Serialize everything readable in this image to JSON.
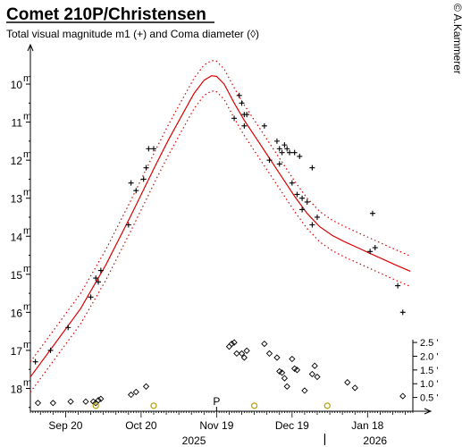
{
  "chart_data": {
    "type": "scatter",
    "title": "Comet 210P/Christensen",
    "subtitle": "Total visual magnitude m1 (+) and Coma diameter (◊)",
    "credit": "© A.Kammerer",
    "magnitude_axis": {
      "ylim": [
        9.2,
        18.6
      ],
      "ticks": [
        10,
        11,
        12,
        13,
        14,
        15,
        16,
        17,
        18
      ],
      "tick_suffix": "m",
      "inverted": true
    },
    "coma_axis": {
      "ylim": [
        0,
        2.6
      ],
      "ticks": [
        0.5,
        1.0,
        1.5,
        2.0,
        2.5
      ],
      "tick_labels": [
        "0.5 '",
        "1.0 '",
        "1.5 '",
        "2.0 '",
        "2.5 '"
      ]
    },
    "x_axis": {
      "unit": "days after 2025-09-01",
      "xlim": [
        5,
        157
      ],
      "ticks": [
        {
          "day": 19,
          "label": "Sep 20"
        },
        {
          "day": 49,
          "label": "Oct 20"
        },
        {
          "day": 79,
          "label": "Nov 19"
        },
        {
          "day": 109,
          "label": "Dec 19"
        },
        {
          "day": 139,
          "label": "Jan 18"
        }
      ],
      "years": [
        {
          "label": "2025",
          "day": 70
        },
        {
          "label": "2026",
          "day": 142
        }
      ],
      "year_boundary_day": 122
    },
    "perihelion": {
      "label": "P",
      "day": 79
    },
    "magnitude_observations": [
      [
        7,
        17.3
      ],
      [
        13,
        17.0
      ],
      [
        20,
        16.4
      ],
      [
        29,
        15.6
      ],
      [
        31,
        15.1
      ],
      [
        32,
        15.2
      ],
      [
        33,
        14.9
      ],
      [
        44,
        13.7
      ],
      [
        45,
        12.6
      ],
      [
        47,
        12.8
      ],
      [
        50,
        12.5
      ],
      [
        51,
        12.2
      ],
      [
        52,
        11.7
      ],
      [
        54,
        11.7
      ],
      [
        86,
        10.9
      ],
      [
        88,
        10.3
      ],
      [
        89,
        10.5
      ],
      [
        90,
        10.8
      ],
      [
        90,
        11.1
      ],
      [
        91,
        10.8
      ],
      [
        98,
        11.1
      ],
      [
        100,
        12.0
      ],
      [
        103,
        11.5
      ],
      [
        104,
        11.7
      ],
      [
        104,
        12.1
      ],
      [
        105,
        11.8
      ],
      [
        106,
        11.6
      ],
      [
        107,
        11.7
      ],
      [
        108,
        11.8
      ],
      [
        109,
        12.6
      ],
      [
        110,
        11.8
      ],
      [
        111,
        12.9
      ],
      [
        112,
        11.9
      ],
      [
        113,
        13.0
      ],
      [
        113,
        13.3
      ],
      [
        115,
        13.1
      ],
      [
        117,
        12.2
      ],
      [
        117,
        13.7
      ],
      [
        119,
        13.5
      ],
      [
        140,
        14.4
      ],
      [
        141,
        13.4
      ],
      [
        142,
        14.3
      ],
      [
        151,
        15.3
      ],
      [
        153,
        16.0
      ]
    ],
    "fit_curve": {
      "name": "model",
      "points": [
        [
          5,
          17.7
        ],
        [
          15,
          16.8
        ],
        [
          25,
          15.9
        ],
        [
          35,
          14.75
        ],
        [
          45,
          13.45
        ],
        [
          55,
          12.1
        ],
        [
          60,
          11.45
        ],
        [
          65,
          10.85
        ],
        [
          70,
          10.25
        ],
        [
          74,
          9.9
        ],
        [
          77,
          9.78
        ],
        [
          79,
          9.8
        ],
        [
          82,
          10.0
        ],
        [
          86,
          10.5
        ],
        [
          90,
          10.95
        ],
        [
          95,
          11.45
        ],
        [
          100,
          11.95
        ],
        [
          105,
          12.45
        ],
        [
          110,
          12.95
        ],
        [
          115,
          13.4
        ],
        [
          120,
          13.75
        ],
        [
          125,
          13.98
        ],
        [
          130,
          14.15
        ],
        [
          135,
          14.3
        ],
        [
          140,
          14.45
        ],
        [
          145,
          14.6
        ],
        [
          150,
          14.75
        ],
        [
          156,
          14.92
        ]
      ],
      "band_offset": 0.4
    },
    "coma_observations": [
      [
        8,
        0.3
      ],
      [
        14,
        0.3
      ],
      [
        21,
        0.35
      ],
      [
        27,
        0.35
      ],
      [
        30,
        0.35
      ],
      [
        31,
        0.3
      ],
      [
        32,
        0.4
      ],
      [
        33,
        0.45
      ],
      [
        45,
        0.6
      ],
      [
        47,
        0.7
      ],
      [
        51,
        0.9
      ],
      [
        84,
        2.35
      ],
      [
        85,
        2.45
      ],
      [
        86,
        2.5
      ],
      [
        87,
        2.1
      ],
      [
        89,
        2.1
      ],
      [
        90,
        1.95
      ],
      [
        91,
        2.2
      ],
      [
        98,
        2.45
      ],
      [
        100,
        2.1
      ],
      [
        103,
        1.95
      ],
      [
        104,
        1.45
      ],
      [
        105,
        1.4
      ],
      [
        106,
        1.2
      ],
      [
        107,
        0.9
      ],
      [
        109,
        1.9
      ],
      [
        110,
        1.55
      ],
      [
        111,
        1.5
      ],
      [
        114,
        0.75
      ],
      [
        117,
        1.35
      ],
      [
        118,
        1.65
      ],
      [
        119,
        1.25
      ],
      [
        131,
        1.05
      ],
      [
        134,
        0.85
      ],
      [
        153,
        0.55
      ]
    ],
    "coma_uncertain": [
      [
        31,
        0.2
      ],
      [
        54,
        0.2
      ],
      [
        94,
        0.2
      ],
      [
        123,
        0.2
      ]
    ],
    "colors": {
      "curve": "#dd0000",
      "band": "#dd0000",
      "observation": "#000000",
      "uncertain_marker": "#b8a000"
    }
  }
}
